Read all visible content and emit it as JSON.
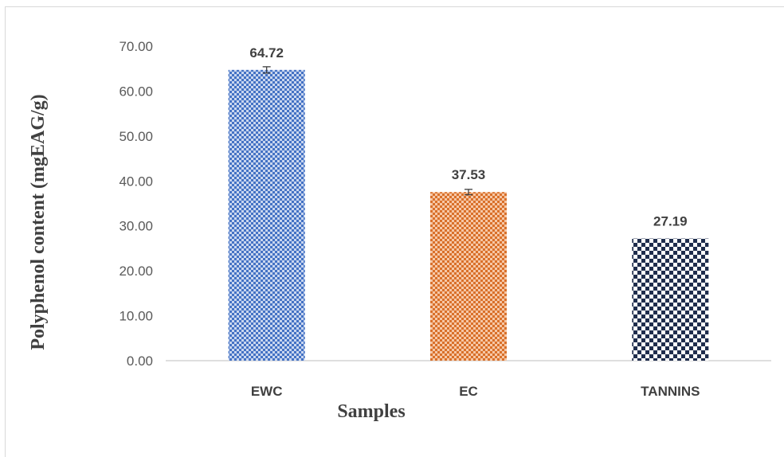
{
  "chart_data": {
    "type": "bar",
    "categories": [
      "EWC",
      "EC",
      "TANNINS"
    ],
    "values": [
      64.72,
      37.53,
      27.19
    ],
    "data_labels": [
      "64.72",
      "37.53",
      "27.19"
    ],
    "error_bars": [
      0.7,
      0.6,
      null
    ],
    "xlabel": "Samples",
    "ylabel": "Polyphenol content (mgEAG/g)",
    "ylim": [
      0,
      70
    ],
    "yticks": [
      "0.00",
      "10.00",
      "20.00",
      "30.00",
      "40.00",
      "50.00",
      "60.00",
      "70.00"
    ],
    "ytick_values": [
      0,
      10,
      20,
      30,
      40,
      50,
      60,
      70
    ],
    "grid": false,
    "bar_colors": [
      "#4472c4",
      "#ed7d31",
      "#1f2d4d"
    ],
    "bar_patterns": [
      "checker-fine",
      "checker-fine",
      "checker-coarse"
    ]
  }
}
